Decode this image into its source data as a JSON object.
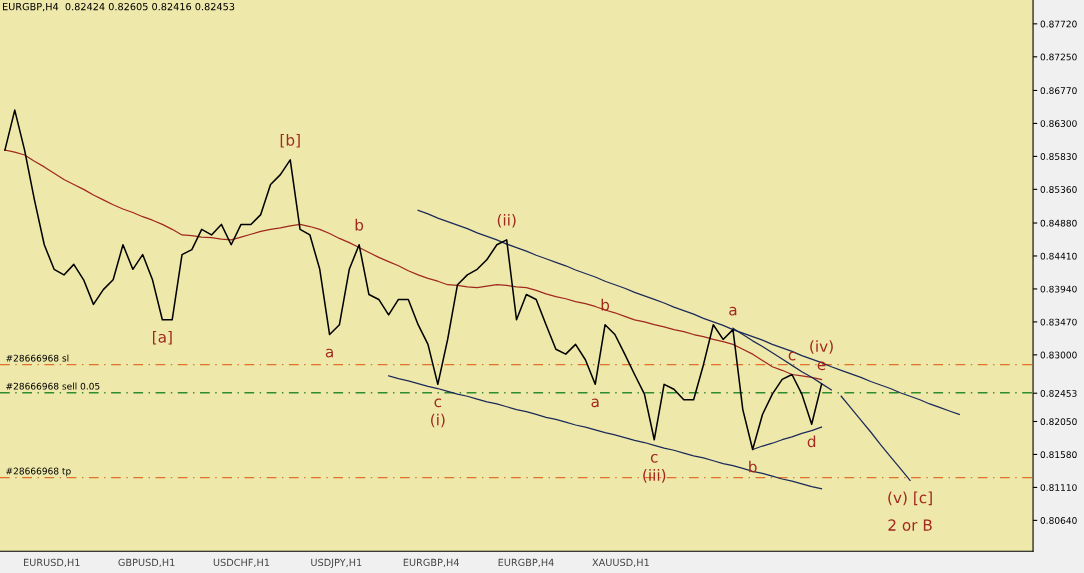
{
  "chart_data": {
    "type": "line",
    "title": "EURGBP,H4  0.82424 0.82605 0.82416 0.82453",
    "categories": [
      null,
      null,
      null,
      null,
      null,
      null,
      null,
      null,
      null,
      null,
      null,
      null,
      null,
      null,
      null,
      null,
      null,
      null,
      null,
      null,
      null,
      null,
      null,
      null,
      null,
      null,
      null,
      null,
      null,
      null,
      null,
      null,
      null,
      null,
      null,
      null,
      null,
      null,
      null,
      null,
      null,
      null,
      null,
      null,
      null,
      null,
      null,
      null,
      null,
      null,
      null,
      null,
      null,
      null,
      null,
      null,
      null,
      null,
      null,
      null,
      null,
      null,
      null,
      null,
      null,
      null,
      null,
      null,
      null,
      null,
      null,
      null,
      null,
      null,
      null,
      null,
      null,
      null,
      null,
      null,
      null,
      null,
      null,
      null,
      null,
      null,
      null,
      null,
      null,
      null,
      null,
      null,
      null,
      null,
      null,
      null,
      null,
      null,
      null,
      null,
      null,
      null,
      null,
      null,
      null
    ],
    "ylim": [
      0.802,
      0.8806
    ],
    "tick_labels": "y",
    "yticks": [
      {
        "value": 0.8064,
        "label": "0.80640"
      },
      {
        "value": 0.8111,
        "label": "0.81110"
      },
      {
        "value": 0.8158,
        "label": "0.81580"
      },
      {
        "value": 0.8205,
        "label": "0.82050"
      },
      {
        "value": 0.82453,
        "label": "0.82453"
      },
      {
        "value": 0.83,
        "label": "0.83000"
      },
      {
        "value": 0.8347,
        "label": "0.83470"
      },
      {
        "value": 0.8394,
        "label": "0.83940"
      },
      {
        "value": 0.8441,
        "label": "0.84410"
      },
      {
        "value": 0.8488,
        "label": "0.84880"
      },
      {
        "value": 0.8536,
        "label": "0.85360"
      },
      {
        "value": 0.8583,
        "label": "0.85830"
      },
      {
        "value": 0.863,
        "label": "0.86300"
      },
      {
        "value": 0.8677,
        "label": "0.86770"
      },
      {
        "value": 0.8725,
        "label": "0.87250"
      },
      {
        "value": 0.8772,
        "label": "0.87720"
      }
    ],
    "series": [
      {
        "color": "#000000",
        "values": [
          0.8592,
          0.8649,
          0.8592,
          0.8521,
          0.8457,
          0.8422,
          0.8414,
          0.8429,
          0.8407,
          0.8372,
          0.8393,
          0.8407,
          0.8457,
          0.8422,
          0.8443,
          0.8407,
          0.835,
          0.835,
          0.8443,
          0.845,
          0.8479,
          0.8471,
          0.8486,
          0.8457,
          0.8486,
          0.8486,
          0.85,
          0.8543,
          0.8557,
          0.8578,
          0.8479,
          0.8471,
          0.8422,
          0.8329,
          0.8343,
          0.8422,
          0.8457,
          0.8386,
          0.8379,
          0.8357,
          0.8379,
          0.8379,
          0.8343,
          0.8315,
          0.8258,
          0.8322,
          0.84,
          0.8414,
          0.8422,
          0.8436,
          0.8457,
          0.8464,
          0.835,
          0.8386,
          0.8379,
          0.8343,
          0.8308,
          0.8301,
          0.8315,
          0.8293,
          0.8258,
          0.8343,
          0.8329,
          0.8301,
          0.8272,
          0.8244,
          0.8179,
          0.8258,
          0.8251,
          0.8236,
          0.8236,
          0.8286,
          0.8343,
          0.8322,
          0.8336,
          0.8222,
          0.8165,
          0.8215,
          0.8244,
          0.8265,
          0.8272,
          0.8244,
          0.8201,
          0.8258,
          null,
          null,
          null,
          null,
          null,
          null,
          null,
          null,
          null,
          null,
          null,
          null,
          null,
          null,
          null,
          null,
          null,
          null,
          null,
          null,
          null
        ],
        "value_labels": [
          null,
          null,
          null,
          null,
          null,
          null,
          null,
          null,
          null,
          null,
          null,
          null,
          null,
          null,
          null,
          null,
          "[a]",
          null,
          null,
          null,
          null,
          null,
          null,
          null,
          null,
          null,
          null,
          null,
          null,
          "[b]",
          null,
          null,
          null,
          "a",
          null,
          null,
          "b",
          null,
          null,
          null,
          null,
          null,
          null,
          null,
          "c\n(i)",
          null,
          null,
          null,
          null,
          null,
          null,
          "(ii)",
          null,
          null,
          null,
          null,
          null,
          null,
          null,
          null,
          "a",
          "b",
          null,
          null,
          null,
          null,
          "c\n(iii)",
          null,
          null,
          null,
          null,
          null,
          null,
          null,
          "a",
          null,
          "b",
          null,
          null,
          null,
          "c",
          null,
          "d",
          "(iv)\ne",
          null,
          null,
          null,
          null,
          null,
          null,
          null,
          null,
          null,
          null,
          null,
          null,
          null,
          null,
          null,
          null,
          null,
          null,
          null,
          null,
          null
        ]
      },
      {
        "color": "#a0281e",
        "values": [
          0.8592,
          0.8589,
          0.8585,
          0.8576,
          0.8568,
          0.8559,
          0.855,
          0.8543,
          0.8536,
          0.8528,
          0.8521,
          0.8514,
          0.8508,
          0.8503,
          0.8497,
          0.8492,
          0.8486,
          0.8479,
          0.8471,
          0.847,
          0.8468,
          0.8467,
          0.8465,
          0.8464,
          0.8468,
          0.8472,
          0.8476,
          0.8479,
          0.8481,
          0.8484,
          0.8486,
          0.8483,
          0.8479,
          0.8473,
          0.8466,
          0.846,
          0.8453,
          0.8446,
          0.8439,
          0.8433,
          0.8427,
          0.842,
          0.8414,
          0.8409,
          0.8405,
          0.84,
          0.8399,
          0.8397,
          0.8396,
          0.8398,
          0.84,
          0.8399,
          0.8397,
          0.8396,
          0.8392,
          0.8387,
          0.8383,
          0.838,
          0.8376,
          0.8373,
          0.8369,
          0.8364,
          0.836,
          0.8355,
          0.835,
          0.8347,
          0.8343,
          0.834,
          0.8336,
          0.8333,
          0.8329,
          0.8326,
          0.8322,
          0.8319,
          0.8315,
          0.8308,
          0.8301,
          0.8292,
          0.8283,
          0.8278,
          0.8272,
          0.827,
          0.8268,
          0.8265,
          null,
          null,
          null,
          null,
          null,
          null,
          null,
          null,
          null,
          null,
          null,
          null,
          null,
          null,
          null,
          null,
          null,
          null,
          null,
          null,
          null
        ]
      },
      {
        "color": "#1c2a5a",
        "values": [
          null,
          null,
          null,
          null,
          null,
          null,
          null,
          null,
          null,
          null,
          null,
          null,
          null,
          null,
          null,
          null,
          null,
          null,
          null,
          null,
          null,
          null,
          null,
          null,
          null,
          null,
          null,
          null,
          null,
          null,
          null,
          null,
          null,
          null,
          null,
          null,
          null,
          null,
          null,
          null,
          null,
          null,
          0.8506,
          0.8501,
          0.8495,
          0.849,
          0.8485,
          0.848,
          0.8474,
          0.8469,
          0.8464,
          0.8458,
          0.8453,
          0.8448,
          0.8442,
          0.8437,
          0.8432,
          0.8427,
          0.8421,
          0.8416,
          0.8411,
          0.8405,
          0.84,
          0.8395,
          0.8389,
          0.8384,
          0.8379,
          0.8374,
          0.8368,
          0.8363,
          0.8358,
          0.8352,
          0.8347,
          0.8342,
          0.8336,
          0.8331,
          0.8326,
          0.8321,
          0.8315,
          0.831,
          0.8305,
          0.8299,
          0.8294,
          0.8289,
          0.8283,
          0.8278,
          0.8273,
          0.8268,
          0.8262,
          0.8257,
          0.8252,
          0.8246,
          0.8241,
          0.8236,
          0.823,
          0.8225,
          0.822,
          0.8215,
          null,
          null,
          null,
          null,
          null,
          null,
          null
        ]
      },
      {
        "color": "#1c2a5a",
        "values": [
          null,
          null,
          null,
          null,
          null,
          null,
          null,
          null,
          null,
          null,
          null,
          null,
          null,
          null,
          null,
          null,
          null,
          null,
          null,
          null,
          null,
          null,
          null,
          null,
          null,
          null,
          null,
          null,
          null,
          null,
          null,
          null,
          null,
          null,
          null,
          null,
          null,
          null,
          null,
          0.827,
          0.8266,
          0.8263,
          0.8259,
          0.8255,
          0.8252,
          0.8248,
          0.8244,
          0.8241,
          0.8237,
          0.8233,
          0.823,
          0.8226,
          0.8222,
          0.8219,
          0.8215,
          0.8211,
          0.8208,
          0.8204,
          0.82,
          0.8197,
          0.8193,
          0.8189,
          0.8186,
          0.8182,
          0.8178,
          0.8175,
          0.8171,
          0.8167,
          0.8164,
          0.816,
          0.8156,
          0.8153,
          0.8149,
          0.8145,
          0.8142,
          0.8138,
          0.8134,
          0.8131,
          0.8127,
          0.8123,
          0.812,
          0.8116,
          0.8112,
          0.8109,
          null,
          null,
          null,
          null,
          null,
          null,
          null,
          null,
          null,
          null,
          null,
          null,
          null,
          null,
          null,
          null,
          null,
          null,
          null,
          null,
          null
        ]
      },
      {
        "color": "#1c2a5a",
        "values": [
          null,
          null,
          null,
          null,
          null,
          null,
          null,
          null,
          null,
          null,
          null,
          null,
          null,
          null,
          null,
          null,
          null,
          null,
          null,
          null,
          null,
          null,
          null,
          null,
          null,
          null,
          null,
          null,
          null,
          null,
          null,
          null,
          null,
          null,
          null,
          null,
          null,
          null,
          null,
          null,
          null,
          null,
          null,
          null,
          null,
          null,
          null,
          null,
          null,
          null,
          null,
          null,
          null,
          null,
          null,
          null,
          null,
          null,
          null,
          null,
          null,
          null,
          null,
          null,
          null,
          null,
          null,
          null,
          null,
          null,
          null,
          null,
          null,
          null,
          0.8338,
          0.8329,
          0.832,
          0.8312,
          0.8303,
          0.8294,
          0.8285,
          0.8276,
          0.8268,
          0.8259,
          0.825,
          null,
          null,
          null,
          null,
          null,
          null,
          null,
          null,
          null,
          null,
          null,
          null,
          null,
          null,
          null,
          null,
          null,
          null,
          null,
          null
        ]
      },
      {
        "color": "#1c2a5a",
        "values": [
          null,
          null,
          null,
          null,
          null,
          null,
          null,
          null,
          null,
          null,
          null,
          null,
          null,
          null,
          null,
          null,
          null,
          null,
          null,
          null,
          null,
          null,
          null,
          null,
          null,
          null,
          null,
          null,
          null,
          null,
          null,
          null,
          null,
          null,
          null,
          null,
          null,
          null,
          null,
          null,
          null,
          null,
          null,
          null,
          null,
          null,
          null,
          null,
          null,
          null,
          null,
          null,
          null,
          null,
          null,
          null,
          null,
          null,
          null,
          null,
          null,
          null,
          null,
          null,
          null,
          null,
          null,
          null,
          null,
          null,
          null,
          null,
          null,
          null,
          null,
          null,
          0.8165,
          0.817,
          0.8174,
          0.8179,
          0.8183,
          0.8188,
          0.8192,
          0.8197,
          null,
          null,
          null,
          null,
          null,
          null,
          null,
          null,
          null,
          null,
          null,
          null,
          null,
          null,
          null,
          null,
          null,
          null,
          null,
          null,
          null
        ]
      },
      {
        "color": "#1c2a5a",
        "values": [
          null,
          null,
          null,
          null,
          null,
          null,
          null,
          null,
          null,
          null,
          null,
          null,
          null,
          null,
          null,
          null,
          null,
          null,
          null,
          null,
          null,
          null,
          null,
          null,
          null,
          null,
          null,
          null,
          null,
          null,
          null,
          null,
          null,
          null,
          null,
          null,
          null,
          null,
          null,
          null,
          null,
          null,
          null,
          null,
          null,
          null,
          null,
          null,
          null,
          null,
          null,
          null,
          null,
          null,
          null,
          null,
          null,
          null,
          null,
          null,
          null,
          null,
          null,
          null,
          null,
          null,
          null,
          null,
          null,
          null,
          null,
          null,
          null,
          null,
          null,
          null,
          null,
          null,
          null,
          null,
          null,
          null,
          null,
          null,
          null,
          0.8241,
          0.8224,
          0.8207,
          0.819,
          0.8172,
          0.8155,
          0.8138,
          0.8121,
          null,
          null,
          null,
          null,
          null,
          null,
          null,
          null,
          null,
          null,
          null,
          null
        ],
        "value_labels": [
          null,
          null,
          null,
          null,
          null,
          null,
          null,
          null,
          null,
          null,
          null,
          null,
          null,
          null,
          null,
          null,
          null,
          null,
          null,
          null,
          null,
          null,
          null,
          null,
          null,
          null,
          null,
          null,
          null,
          null,
          null,
          null,
          null,
          null,
          null,
          null,
          null,
          null,
          null,
          null,
          null,
          null,
          null,
          null,
          null,
          null,
          null,
          null,
          null,
          null,
          null,
          null,
          null,
          null,
          null,
          null,
          null,
          null,
          null,
          null,
          null,
          null,
          null,
          null,
          null,
          null,
          null,
          null,
          null,
          null,
          null,
          null,
          null,
          null,
          null,
          null,
          null,
          null,
          null,
          null,
          null,
          null,
          null,
          null,
          null,
          null,
          null,
          null,
          null,
          null,
          null,
          null,
          "(v) [c]",
          null,
          null,
          null,
          null,
          null,
          null,
          null,
          null,
          null,
          null,
          null,
          null
        ]
      }
    ],
    "ref_lines": [
      {
        "axis": "y",
        "value": 0.8286,
        "label": "#28666968 sl",
        "color": "#e0702a",
        "line_style": "dashed"
      },
      {
        "axis": "y",
        "value": 0.8246,
        "label": "#28666968 sell 0.05",
        "color": "#2e8b2e",
        "line_style": "dashed"
      },
      {
        "axis": "y",
        "value": 0.8125,
        "label": "#28666968 tp",
        "color": "#e0702a",
        "line_style": "dashed"
      }
    ],
    "annotations": [
      "2 or B",
      "EURUSD,H1",
      "GBPUSD,H1",
      "USDCHF,H1",
      "USDJPY,H1",
      "EURGBP,H4",
      "EURGBP,H4",
      "XAUUSD,H1"
    ]
  }
}
